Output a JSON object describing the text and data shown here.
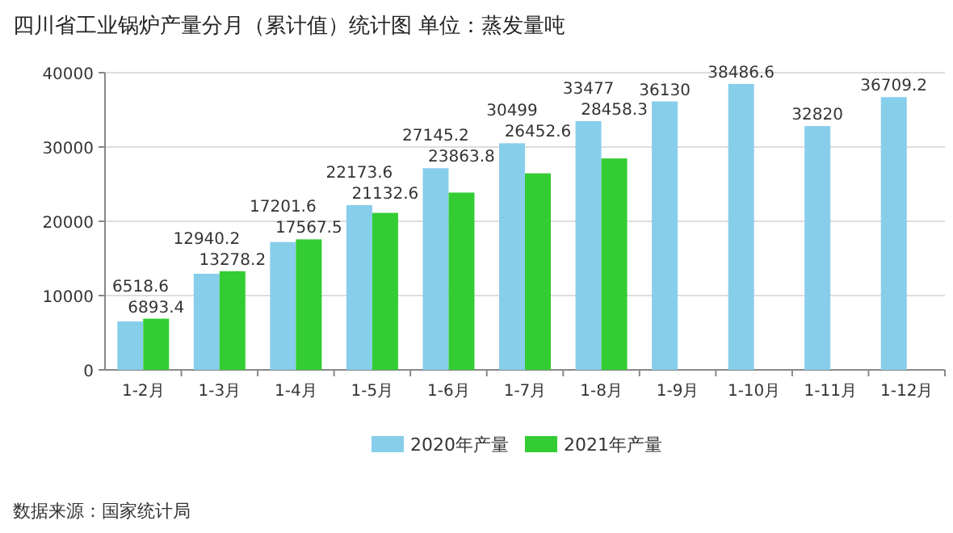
{
  "chart_data": {
    "type": "bar",
    "title": "四川省工业锅炉产量分月（累计值）统计图 单位：蒸发量吨",
    "categories": [
      "1-2月",
      "1-3月",
      "1-4月",
      "1-5月",
      "1-6月",
      "1-7月",
      "1-8月",
      "1-9月",
      "1-10月",
      "1-11月",
      "1-12月"
    ],
    "series": [
      {
        "name": "2020年产量",
        "color": "#87ceeb",
        "values": [
          6518.6,
          12940.2,
          17201.6,
          22173.6,
          27145.2,
          30499,
          33477,
          36130,
          38486.6,
          32820,
          36709.2
        ]
      },
      {
        "name": "2021年产量",
        "color": "#33cc33",
        "values": [
          6893.4,
          13278.2,
          17567.5,
          21132.6,
          23863.8,
          26452.6,
          28458.3,
          null,
          null,
          null,
          null
        ]
      }
    ],
    "ylim": [
      0,
      40000
    ],
    "yticks": [
      0,
      10000,
      20000,
      30000,
      40000
    ],
    "grid": "y",
    "legend": "bottom",
    "data_labels": true,
    "annotations": [
      "数据来源：国家统计局"
    ]
  }
}
